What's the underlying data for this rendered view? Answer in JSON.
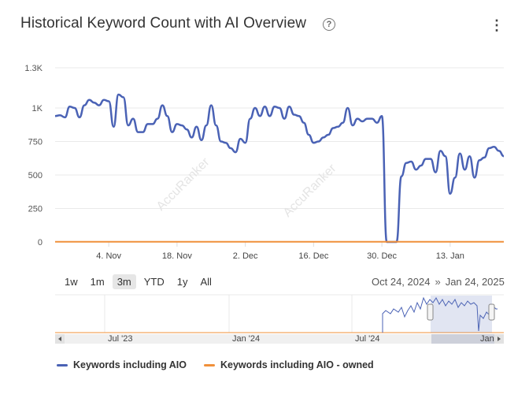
{
  "header": {
    "title": "Historical Keyword Count with AI Overview",
    "help_symbol": "?",
    "menu_symbol": "⋮"
  },
  "watermark": "AccuRanker",
  "range_selector": {
    "buttons": [
      "1w",
      "1m",
      "3m",
      "YTD",
      "1y",
      "All"
    ],
    "active": "3m",
    "from": "Oct 24, 2024",
    "separator": "»",
    "to": "Jan 24, 2025"
  },
  "navigator": {
    "labels": [
      "Jul '23",
      "Jan '24",
      "Jul '24",
      "Jan"
    ]
  },
  "legend": [
    {
      "name": "Keywords including AIO",
      "color": "#4a62b5"
    },
    {
      "name": "Keywords including AIO - owned",
      "color": "#f0903a"
    }
  ],
  "chart_data": {
    "type": "line",
    "title": "Historical Keyword Count with AI Overview",
    "x_range": [
      "2024-10-24",
      "2025-01-24"
    ],
    "ylim": [
      0,
      1300
    ],
    "y_ticks": [
      "0",
      "250",
      "500",
      "750",
      "1K",
      "1.3K"
    ],
    "x_ticks": [
      "4. Nov",
      "18. Nov",
      "2. Dec",
      "16. Dec",
      "30. Dec",
      "13. Jan"
    ],
    "grid": true,
    "legend_position": "bottom-left",
    "series": [
      {
        "name": "Keywords including AIO",
        "color": "#4a62b5",
        "x": [
          "2024-10-24",
          "2024-10-25",
          "2024-10-26",
          "2024-10-27",
          "2024-10-28",
          "2024-10-29",
          "2024-10-30",
          "2024-10-31",
          "2024-11-01",
          "2024-11-02",
          "2024-11-03",
          "2024-11-04",
          "2024-11-05",
          "2024-11-06",
          "2024-11-07",
          "2024-11-08",
          "2024-11-09",
          "2024-11-10",
          "2024-11-11",
          "2024-11-12",
          "2024-11-13",
          "2024-11-14",
          "2024-11-15",
          "2024-11-16",
          "2024-11-17",
          "2024-11-18",
          "2024-11-19",
          "2024-11-20",
          "2024-11-21",
          "2024-11-22",
          "2024-11-23",
          "2024-11-24",
          "2024-11-25",
          "2024-11-26",
          "2024-11-27",
          "2024-11-28",
          "2024-11-29",
          "2024-11-30",
          "2024-12-01",
          "2024-12-02",
          "2024-12-03",
          "2024-12-04",
          "2024-12-05",
          "2024-12-06",
          "2024-12-07",
          "2024-12-08",
          "2024-12-09",
          "2024-12-10",
          "2024-12-11",
          "2024-12-12",
          "2024-12-13",
          "2024-12-14",
          "2024-12-15",
          "2024-12-16",
          "2024-12-17",
          "2024-12-18",
          "2024-12-19",
          "2024-12-20",
          "2024-12-21",
          "2024-12-22",
          "2024-12-23",
          "2024-12-24",
          "2024-12-25",
          "2024-12-26",
          "2024-12-27",
          "2024-12-28",
          "2024-12-29",
          "2024-12-30",
          "2024-12-31",
          "2025-01-01",
          "2025-01-02",
          "2025-01-03",
          "2025-01-04",
          "2025-01-05",
          "2025-01-06",
          "2025-01-07",
          "2025-01-08",
          "2025-01-09",
          "2025-01-10",
          "2025-01-11",
          "2025-01-12",
          "2025-01-13",
          "2025-01-14",
          "2025-01-15",
          "2025-01-16",
          "2025-01-17",
          "2025-01-18",
          "2025-01-19",
          "2025-01-20",
          "2025-01-21",
          "2025-01-22",
          "2025-01-23",
          "2025-01-24"
        ],
        "values": [
          940,
          945,
          930,
          1010,
          1000,
          930,
          1020,
          1060,
          1040,
          1020,
          1060,
          1050,
          860,
          1100,
          1080,
          870,
          920,
          820,
          820,
          880,
          880,
          920,
          1020,
          940,
          820,
          880,
          870,
          840,
          780,
          860,
          760,
          870,
          1020,
          870,
          750,
          740,
          700,
          670,
          770,
          740,
          920,
          1000,
          940,
          1010,
          940,
          1010,
          1000,
          920,
          1010,
          950,
          940,
          890,
          800,
          740,
          750,
          780,
          800,
          850,
          860,
          890,
          1000,
          870,
          920,
          900,
          920,
          920,
          890,
          940,
          0,
          0,
          0,
          490,
          590,
          600,
          540,
          570,
          620,
          620,
          520,
          680,
          640,
          360,
          480,
          660,
          540,
          640,
          480,
          610,
          630,
          700,
          710,
          680,
          640
        ],
        "approx": true
      },
      {
        "name": "Keywords including AIO - owned",
        "color": "#f0903a",
        "x_from": "2024-10-24",
        "x_to": "2025-01-24",
        "values": [
          2,
          2,
          2,
          2,
          2,
          2,
          2,
          2,
          2,
          2,
          2,
          2,
          2,
          2,
          2,
          2,
          2,
          2,
          2,
          2,
          2,
          2,
          2,
          2,
          2,
          2,
          2,
          2,
          2,
          2,
          2,
          2,
          2,
          2,
          2,
          2,
          2,
          2,
          2,
          2,
          2,
          2,
          2,
          2,
          2,
          2,
          2,
          2,
          2,
          2,
          2,
          2,
          2,
          2,
          2,
          2,
          2,
          2,
          2,
          2,
          2,
          2,
          2,
          2,
          2,
          2,
          2,
          2,
          2,
          2,
          2,
          2,
          2,
          2,
          2,
          2,
          2,
          2,
          2,
          2,
          2,
          2,
          2,
          2,
          2,
          2,
          2,
          2,
          2,
          2,
          2,
          2,
          2
        ],
        "approx": true
      }
    ]
  }
}
